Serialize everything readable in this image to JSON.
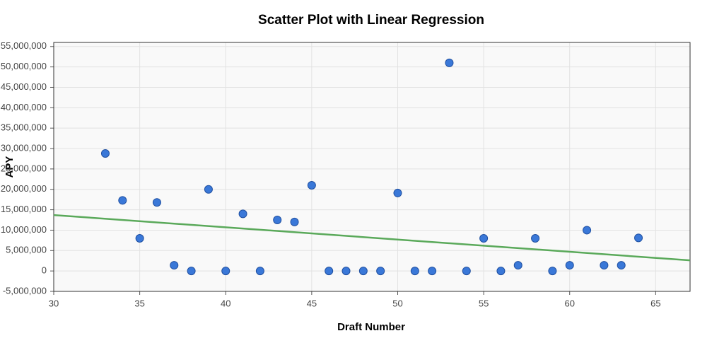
{
  "chart_data": {
    "type": "scatter",
    "title": "Scatter Plot with Linear Regression",
    "x_label": "Draft Number",
    "y_label": "APY",
    "x": [
      33,
      34,
      35,
      36,
      37,
      38,
      39,
      40,
      41,
      42,
      43,
      44,
      45,
      46,
      47,
      48,
      49,
      50,
      51,
      52,
      53,
      54,
      55,
      56,
      57,
      58,
      59,
      60,
      61,
      62,
      63,
      64
    ],
    "values": [
      28800000,
      17300000,
      8000000,
      16800000,
      1400000,
      0,
      20000000,
      0,
      14000000,
      0,
      12500000,
      12000000,
      21000000,
      0,
      0,
      0,
      0,
      19100000,
      0,
      0,
      51000000,
      0,
      8000000,
      0,
      1400000,
      8000000,
      0,
      1400000,
      10000000,
      1400000,
      1400000,
      8100000
    ],
    "color": "#3a78d8",
    "regression": {
      "x": [
        30,
        67
      ],
      "values": [
        13700000,
        2600000
      ],
      "color": "#5aa95a"
    },
    "xlim": [
      30,
      67
    ],
    "xticks": [
      30,
      35,
      40,
      45,
      50,
      55,
      60,
      65
    ],
    "ylim": [
      -5000000,
      56000000
    ],
    "yticks": [
      {
        "value": -5000000,
        "label": "-5,000,000"
      },
      {
        "value": 0,
        "label": "0"
      },
      {
        "value": 5000000,
        "label": "5,000,000"
      },
      {
        "value": 10000000,
        "label": "10,000,000"
      },
      {
        "value": 15000000,
        "label": "15,000,000"
      },
      {
        "value": 20000000,
        "label": "20,000,000"
      },
      {
        "value": 25000000,
        "label": "25,000,000"
      },
      {
        "value": 30000000,
        "label": "30,000,000"
      },
      {
        "value": 35000000,
        "label": "35,000,000"
      },
      {
        "value": 40000000,
        "label": "40,000,000"
      },
      {
        "value": 45000000,
        "label": "45,000,000"
      },
      {
        "value": 50000000,
        "label": "50,000,000"
      },
      {
        "value": 55000000,
        "label": "55,000,000"
      }
    ],
    "grid": true
  }
}
